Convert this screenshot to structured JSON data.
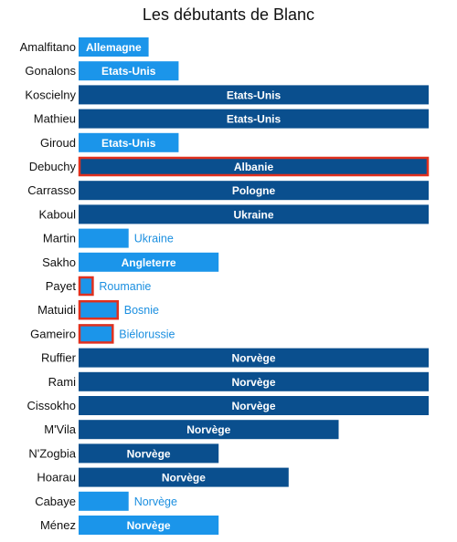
{
  "chart_data": {
    "type": "bar",
    "orientation": "horizontal",
    "title": "Les débutants de Blanc",
    "xlabel": "",
    "ylabel": "",
    "xlim": [
      0,
      35
    ],
    "grid": false,
    "legend": "none",
    "colors": {
      "dark": "#0a4f8e",
      "light": "#1b95ea",
      "highlight_border": "#e0301e"
    },
    "categories": [
      "Amalfitano",
      "Gonalons",
      "Koscielny",
      "Mathieu",
      "Giroud",
      "Debuchy",
      "Carrasso",
      "Kaboul",
      "Martin",
      "Sakho",
      "Payet",
      "Matuidi",
      "Gameiro",
      "Ruffier",
      "Rami",
      "Cissokho",
      "M'Vila",
      "N'Zogbia",
      "Hoarau",
      "Cabaye",
      "Ménez"
    ],
    "opponents": [
      "Allemagne",
      "Etats-Unis",
      "Etats-Unis",
      "Etats-Unis",
      "Etats-Unis",
      "Albanie",
      "Pologne",
      "Ukraine",
      "Ukraine",
      "Angleterre",
      "Roumanie",
      "Bosnie",
      "Biélorussie",
      "Norvège",
      "Norvège",
      "Norvège",
      "Norvège",
      "Norvège",
      "Norvège",
      "Norvège",
      "Norvège"
    ],
    "values": [
      7,
      10,
      35,
      35,
      10,
      35,
      35,
      35,
      5,
      14,
      1.5,
      4,
      3.5,
      35,
      35,
      35,
      26,
      14,
      21,
      5,
      14
    ],
    "shade": [
      "light",
      "light",
      "dark",
      "dark",
      "light",
      "dark",
      "dark",
      "dark",
      "light",
      "light",
      "light",
      "light",
      "light",
      "dark",
      "dark",
      "dark",
      "dark",
      "dark",
      "dark",
      "light",
      "light"
    ],
    "highlighted": [
      false,
      false,
      false,
      false,
      false,
      true,
      false,
      false,
      false,
      false,
      true,
      true,
      true,
      false,
      false,
      false,
      false,
      false,
      false,
      false,
      false
    ]
  }
}
